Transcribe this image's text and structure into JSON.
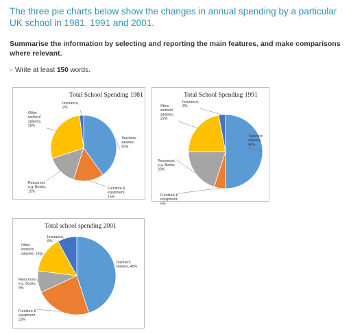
{
  "heading": "The three pie charts below show the changes in annual spending by a particular UK school in 1981, 1991 and 2001.",
  "instruction": "Summarise the information by selecting and reporting the main features, and make comparisons where relevant.",
  "words": {
    "prefix": "Write at least ",
    "count": "150",
    "suffix": " words."
  },
  "colors": {
    "teachers": "#5b9bd5",
    "furniture": "#ed7d31",
    "resources": "#a5a5a5",
    "other": "#ffc000",
    "insurance": "#4472c4"
  },
  "chart_data": [
    {
      "type": "pie",
      "title": "Total School Spending 1981",
      "slices": [
        {
          "key": "teachers",
          "label": [
            "Teachers'",
            "salaries,",
            "40%"
          ],
          "value": 40
        },
        {
          "key": "furniture",
          "label": [
            "Furniture &",
            "equipment,",
            "15%"
          ],
          "value": 15
        },
        {
          "key": "resources",
          "label": [
            "Resources",
            "e.g. Books,",
            "15%"
          ],
          "value": 15
        },
        {
          "key": "other",
          "label": [
            "Other",
            "workers'",
            "salaries,",
            "28%"
          ],
          "value": 28
        },
        {
          "key": "insurance",
          "label": [
            "Insurance,",
            "2%"
          ],
          "value": 2
        }
      ]
    },
    {
      "type": "pie",
      "title": "Total School Spending 1991",
      "slices": [
        {
          "key": "teachers",
          "label": [
            "Teachers'",
            "salaries,",
            "50%"
          ],
          "value": 50
        },
        {
          "key": "furniture",
          "label": [
            "Furniture &",
            "equipment,",
            "5%"
          ],
          "value": 5
        },
        {
          "key": "resources",
          "label": [
            "Resources",
            "e.g. Books,",
            "20%"
          ],
          "value": 20
        },
        {
          "key": "other",
          "label": [
            "Other",
            "workers'",
            "salaries,",
            "22%"
          ],
          "value": 22
        },
        {
          "key": "insurance",
          "label": [
            "Insurance,",
            "3%"
          ],
          "value": 3
        }
      ]
    },
    {
      "type": "pie",
      "title": "Total school spending 2001",
      "slices": [
        {
          "key": "teachers",
          "label": [
            "Teachers'",
            "salaries, 45%"
          ],
          "value": 45
        },
        {
          "key": "furniture",
          "label": [
            "Furniture &",
            "equipment,",
            "23%"
          ],
          "value": 23
        },
        {
          "key": "resources",
          "label": [
            "Resources",
            "e.g. Books,",
            "9%"
          ],
          "value": 9
        },
        {
          "key": "other",
          "label": [
            "Other",
            "workers'",
            "salaries, 15%"
          ],
          "value": 15
        },
        {
          "key": "insurance",
          "label": [
            "Insurance,",
            "8%"
          ],
          "value": 8
        }
      ]
    }
  ]
}
